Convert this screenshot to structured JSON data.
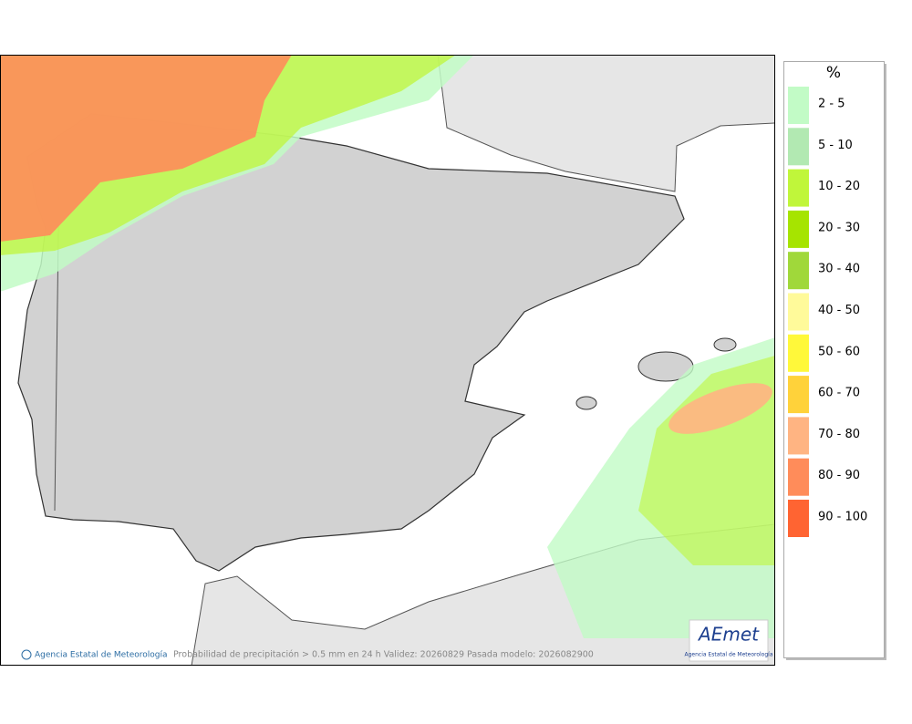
{
  "legend": {
    "title": "%",
    "items": [
      {
        "label": "2 - 5",
        "color": "#c2fbc6"
      },
      {
        "label": "5 - 10",
        "color": "#b2e9b2"
      },
      {
        "label": "10 - 20",
        "color": "#c0f63a"
      },
      {
        "label": "20 - 30",
        "color": "#a6e400"
      },
      {
        "label": "30 - 40",
        "color": "#a0d83a"
      },
      {
        "label": "40 - 50",
        "color": "#fffa9a"
      },
      {
        "label": "50 - 60",
        "color": "#fff83a"
      },
      {
        "label": "60 - 70",
        "color": "#ffd23a"
      },
      {
        "label": "70 - 80",
        "color": "#ffb482"
      },
      {
        "label": "80 - 90",
        "color": "#ff8c5a"
      },
      {
        "label": "90 - 100",
        "color": "#ff6432"
      }
    ]
  },
  "footer": {
    "credit": "Agencia Estatal de Meteorología",
    "caption": "Probabilidad de precipitación > 0.5 mm en 24 h Validez: 20260829 Pasada modelo: 2026082900"
  },
  "logo": {
    "text": "AEmet",
    "subtitle": "Agencia Estatal de Meteorología"
  }
}
